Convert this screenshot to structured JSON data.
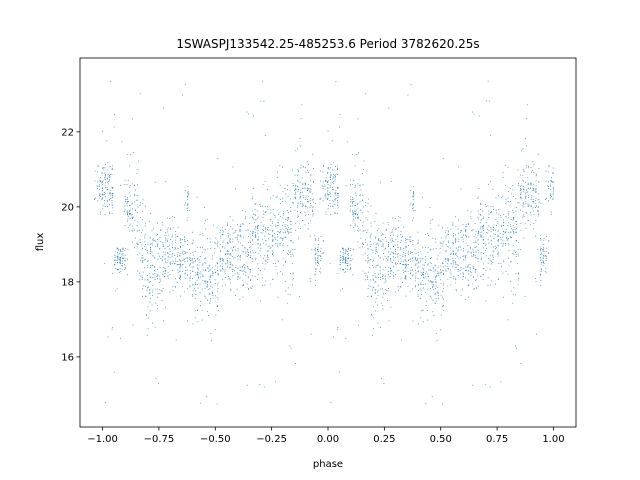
{
  "chart_data": {
    "type": "scatter",
    "title": "1SWASPJ133542.25-485253.6 Period 3782620.25s",
    "xlabel": "phase",
    "ylabel": "flux",
    "xlim": [
      -1.1,
      1.1
    ],
    "ylim": [
      14.13,
      23.97
    ],
    "xticks": [
      -1.0,
      -0.75,
      -0.5,
      -0.25,
      0.0,
      0.25,
      0.5,
      0.75,
      1.0
    ],
    "xtick_labels": [
      "−1.00",
      "−0.75",
      "−0.50",
      "−0.25",
      "0.00",
      "0.25",
      "0.50",
      "0.75",
      "1.00"
    ],
    "yticks": [
      16,
      18,
      20,
      22
    ],
    "ytick_labels": [
      "16",
      "18",
      "20",
      "22"
    ],
    "grid": false,
    "marker_color": "#1f77b4",
    "note": "folded light curve shown twice (phase and phase-1); points summarized as phase segments",
    "segments": [
      {
        "phase": [
          -0.03,
          0.05
        ],
        "flux_mean": 20.5,
        "flux_sd": 0.4
      },
      {
        "phase": [
          0.05,
          0.1
        ],
        "flux_mean": 18.6,
        "flux_sd": 0.2
      },
      {
        "phase": [
          0.1,
          0.155
        ],
        "flux_mean": 20.0,
        "flux_sd": 0.6
      },
      {
        "phase": [
          0.155,
          0.19
        ],
        "flux_mean": 19.0,
        "flux_sd": 0.6
      },
      {
        "phase": [
          0.19,
          0.26
        ],
        "flux_mean": 18.3,
        "flux_sd": 0.6
      },
      {
        "phase": [
          0.26,
          0.34
        ],
        "flux_mean": 18.7,
        "flux_sd": 0.5
      },
      {
        "phase": [
          0.34,
          0.4
        ],
        "flux_mean": 18.5,
        "flux_sd": 0.4
      },
      {
        "phase": [
          0.37,
          0.385
        ],
        "flux_mean": 20.1,
        "flux_sd": 0.3
      },
      {
        "phase": [
          0.4,
          0.52
        ],
        "flux_mean": 18.2,
        "flux_sd": 0.6
      },
      {
        "phase": [
          0.52,
          0.66
        ],
        "flux_mean": 18.7,
        "flux_sd": 0.5
      },
      {
        "phase": [
          0.66,
          0.76
        ],
        "flux_mean": 19.3,
        "flux_sd": 0.6
      },
      {
        "phase": [
          0.76,
          0.85
        ],
        "flux_mean": 19.3,
        "flux_sd": 0.7
      },
      {
        "phase": [
          0.85,
          0.94
        ],
        "flux_mean": 20.3,
        "flux_sd": 0.5
      },
      {
        "phase": [
          0.94,
          0.975
        ],
        "flux_mean": 18.7,
        "flux_sd": 0.3
      }
    ],
    "outlier_flux_range": [
      14.5,
      23.6
    ]
  }
}
